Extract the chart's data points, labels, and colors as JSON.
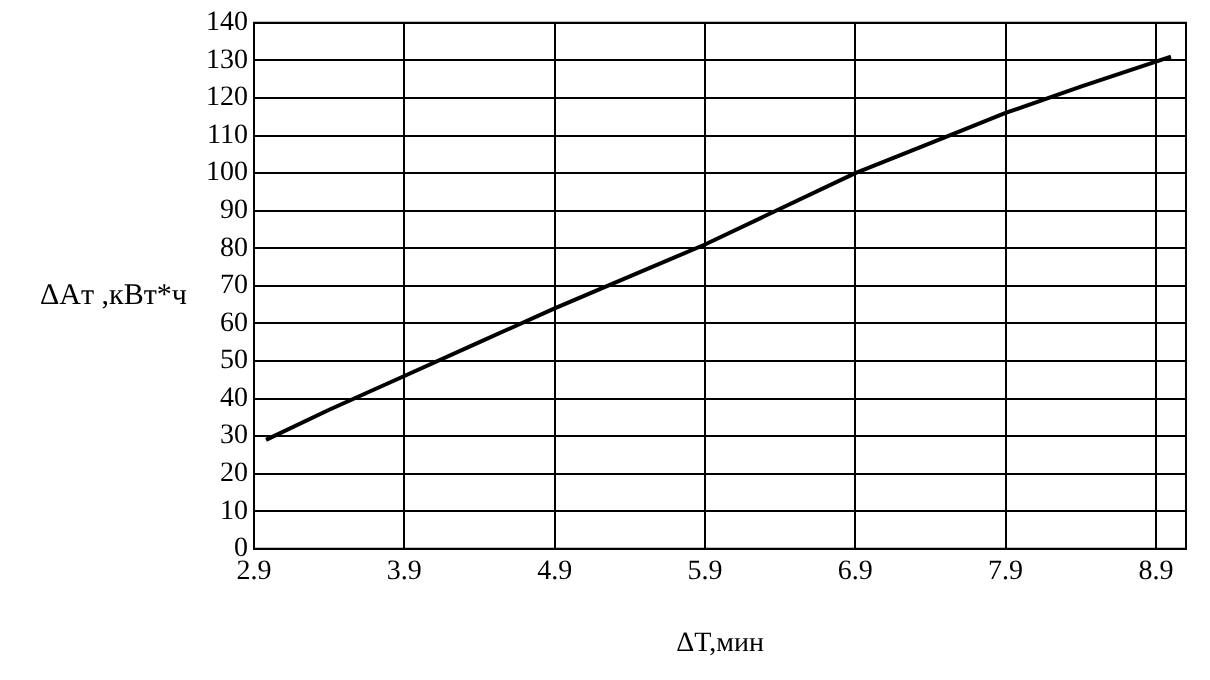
{
  "chart_data": {
    "type": "line",
    "xlabel": "ΔT,мин",
    "ylabel": "ΔAт ,кВт*ч",
    "x": [
      2.98,
      3.4,
      3.9,
      4.4,
      4.9,
      5.4,
      5.9,
      6.4,
      6.9,
      7.4,
      7.9,
      8.4,
      9.0
    ],
    "series": [
      {
        "color": "#000000",
        "values": [
          29,
          37,
          46,
          55,
          64,
          72.5,
          81,
          90.5,
          100,
          108,
          116,
          123,
          131
        ]
      }
    ],
    "xlim": [
      2.9,
      9.1
    ],
    "xticks": [
      2.9,
      3.9,
      4.9,
      5.9,
      6.9,
      7.9,
      8.9
    ],
    "ylim": [
      0,
      140
    ],
    "yticks": [
      0,
      10,
      20,
      30,
      40,
      50,
      60,
      70,
      80,
      90,
      100,
      110,
      120,
      130,
      140
    ],
    "grid": true,
    "legend": false,
    "marker": "none",
    "line_style": "solid"
  }
}
